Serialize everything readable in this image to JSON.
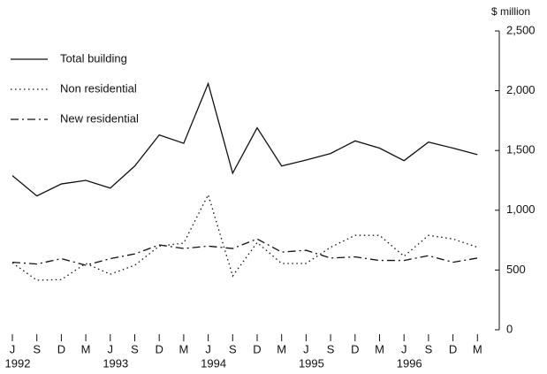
{
  "chart_data": {
    "type": "line",
    "y_label": "$ million",
    "categories": [
      "J",
      "S",
      "D",
      "M",
      "J",
      "S",
      "D",
      "M",
      "J",
      "S",
      "D",
      "M",
      "J",
      "S",
      "D",
      "M",
      "J",
      "S",
      "D",
      "M"
    ],
    "years": [
      "1992",
      null,
      null,
      null,
      "1993",
      null,
      null,
      null,
      "1994",
      null,
      null,
      null,
      "1995",
      null,
      null,
      null,
      "1996",
      null,
      null,
      null
    ],
    "ylim": [
      0,
      2500
    ],
    "yticks": [
      0,
      500,
      {
        "value": 1000,
        "label": "1,000"
      },
      {
        "value": 1500,
        "label": "1,500"
      },
      {
        "value": 2000,
        "label": "2,000"
      },
      {
        "value": 2500,
        "label": "2,500"
      }
    ],
    "series": [
      {
        "name": "Total building",
        "color": "#111111",
        "dash": "solid",
        "values": [
          1290,
          1120,
          1220,
          1250,
          1185,
          1370,
          1630,
          1560,
          2060,
          1310,
          1690,
          1370,
          1420,
          1475,
          1580,
          1520,
          1415,
          1570,
          1520,
          1465
        ]
      },
      {
        "name": "Non residential",
        "color": "#111111",
        "dash": "dotted",
        "values": [
          560,
          415,
          420,
          555,
          465,
          540,
          700,
          725,
          1130,
          450,
          730,
          555,
          555,
          690,
          790,
          790,
          615,
          790,
          760,
          690
        ]
      },
      {
        "name": "New residential",
        "color": "#111111",
        "dash": "dashdot",
        "values": [
          565,
          550,
          595,
          540,
          595,
          635,
          710,
          680,
          700,
          680,
          760,
          650,
          665,
          600,
          610,
          580,
          580,
          620,
          565,
          600
        ]
      }
    ]
  }
}
